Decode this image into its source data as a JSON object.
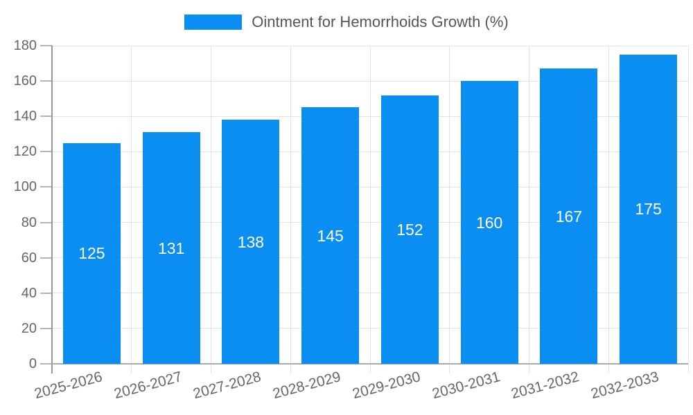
{
  "chart_data": {
    "type": "bar",
    "title": "Ointment for Hemorrhoids Growth (%)",
    "categories": [
      "2025-2026",
      "2026-2027",
      "2027-2028",
      "2028-2029",
      "2029-2030",
      "2030-2031",
      "2031-2032",
      "2032-2033"
    ],
    "values": [
      125,
      131,
      138,
      145,
      152,
      160,
      167,
      175
    ],
    "xlabel": "",
    "ylabel": "",
    "ylim": [
      0,
      180
    ],
    "ytick_step": 20,
    "ytick_labels": [
      "0",
      "20",
      "40",
      "60",
      "80",
      "100",
      "120",
      "140",
      "160",
      "180"
    ],
    "grid": true,
    "legend_position": "top-center",
    "value_labels_inside_bars": true,
    "colors": {
      "bar": "#0a8ef2",
      "bar_value_text": "#ffffff",
      "grid": "#e2e2e2",
      "y_axis_line": "#969696",
      "x_axis_line": "#aaaaaa",
      "tick_text": "#666666",
      "title_text": "#555555",
      "background": "#ffffff"
    }
  }
}
